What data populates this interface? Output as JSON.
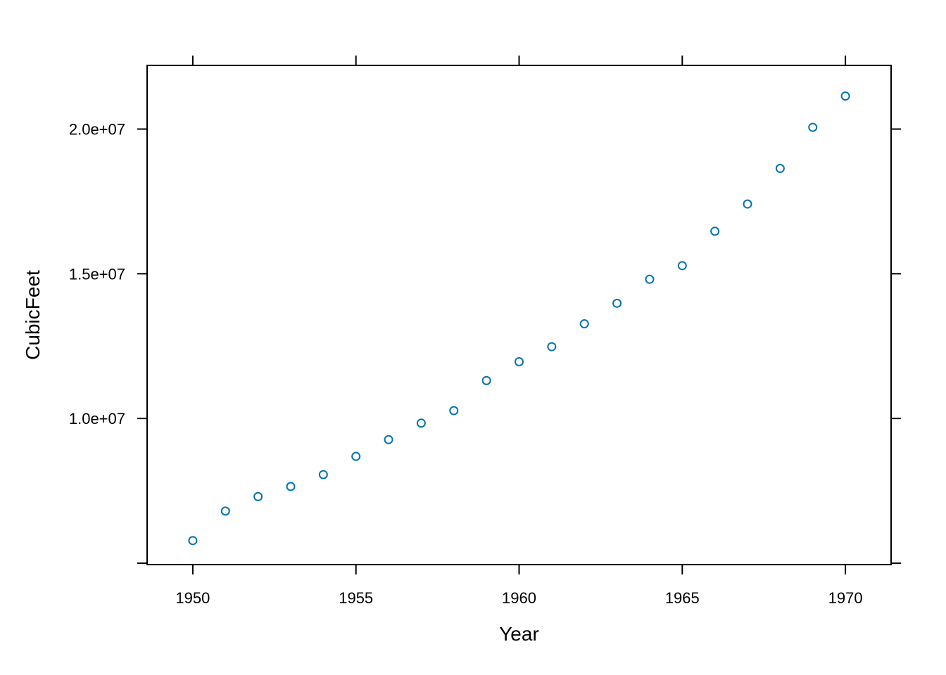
{
  "chart_data": {
    "type": "scatter",
    "title": "",
    "xlabel": "Year",
    "ylabel": "CubicFeet",
    "xlim": [
      1948.6,
      1971.4
    ],
    "ylim": [
      4950000,
      22200000
    ],
    "x_ticks": [
      1950,
      1955,
      1960,
      1965,
      1970
    ],
    "x_tick_labels": [
      "1950",
      "1955",
      "1960",
      "1965",
      "1970"
    ],
    "y_ticks": [
      5000000,
      10000000,
      15000000,
      20000000
    ],
    "y_tick_labels": [
      "",
      "1.0e+07",
      "1.5e+07",
      "2.0e+07"
    ],
    "grid": false,
    "legend": "none",
    "marker": "open-circle",
    "color": "#0072B2",
    "x": [
      1950,
      1951,
      1952,
      1953,
      1954,
      1955,
      1956,
      1957,
      1958,
      1959,
      1960,
      1961,
      1962,
      1963,
      1964,
      1965,
      1966,
      1967,
      1968,
      1969,
      1970
    ],
    "y": [
      5780000,
      6800000,
      7300000,
      7650000,
      8060000,
      8690000,
      9270000,
      9840000,
      10270000,
      11310000,
      11960000,
      12480000,
      13270000,
      13980000,
      14810000,
      15280000,
      16470000,
      17410000,
      18640000,
      20060000,
      21140000
    ]
  }
}
